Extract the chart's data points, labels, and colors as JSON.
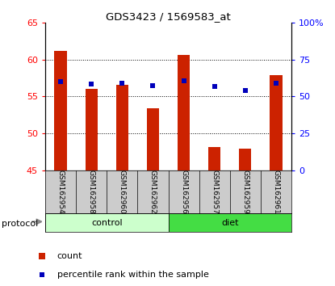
{
  "title": "GDS3423 / 1569583_at",
  "samples": [
    "GSM162954",
    "GSM162958",
    "GSM162960",
    "GSM162962",
    "GSM162956",
    "GSM162957",
    "GSM162959",
    "GSM162961"
  ],
  "groups": [
    "control",
    "control",
    "control",
    "control",
    "diet",
    "diet",
    "diet",
    "diet"
  ],
  "count_values": [
    61.2,
    56.0,
    56.6,
    53.4,
    60.6,
    48.1,
    47.9,
    57.9
  ],
  "percentile_values": [
    57.0,
    56.75,
    56.85,
    56.5,
    57.1,
    56.4,
    55.85,
    56.85
  ],
  "bar_color": "#cc2200",
  "dot_color": "#0000bb",
  "left_ylim": [
    45,
    65
  ],
  "right_ylim": [
    0,
    100
  ],
  "left_yticks": [
    45,
    50,
    55,
    60,
    65
  ],
  "right_yticks": [
    0,
    25,
    50,
    75,
    100
  ],
  "right_yticklabels": [
    "0",
    "25",
    "50",
    "75",
    "100%"
  ],
  "grid_values": [
    50,
    55,
    60
  ],
  "control_color_light": "#ccffcc",
  "control_color_dark": "#44dd44",
  "label_area_bg": "#cccccc",
  "protocol_label": "protocol",
  "legend_count": "count",
  "legend_percentile": "percentile rank within the sample",
  "bar_width": 0.4,
  "baseline": 45
}
